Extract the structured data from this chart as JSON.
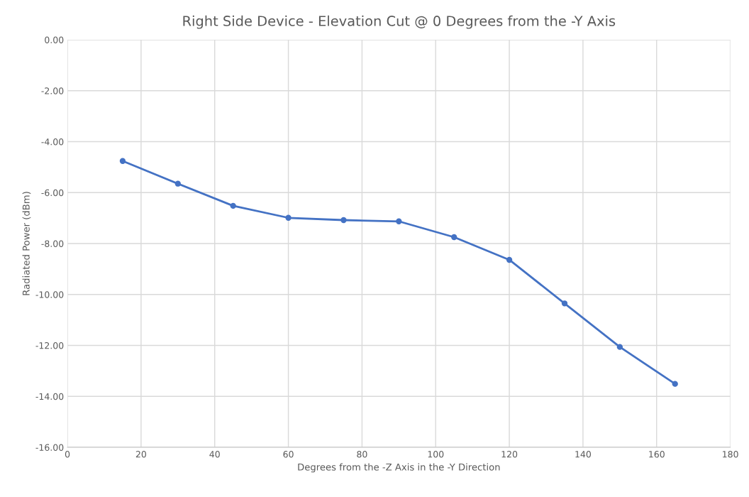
{
  "chart_data": {
    "type": "line",
    "title": "Right Side Device - Elevation Cut @ 0 Degrees from the -Y Axis",
    "xlabel": "Degrees from the -Z Axis in the -Y Direction",
    "ylabel": "Radiated Power (dBm)",
    "x": [
      15,
      30,
      45,
      60,
      75,
      90,
      105,
      120,
      135,
      150,
      165
    ],
    "series": [
      {
        "color": "#4472c4",
        "values": [
          -4.76,
          -5.65,
          -6.52,
          -6.99,
          -7.08,
          -7.13,
          -7.75,
          -8.64,
          -10.35,
          -12.06,
          -13.51
        ]
      }
    ],
    "xlim": [
      0,
      180
    ],
    "xticks": [
      0,
      20,
      40,
      60,
      80,
      100,
      120,
      140,
      160,
      180
    ],
    "ylim": [
      -16,
      0
    ],
    "yticks": [
      {
        "value": -16,
        "label": "-16.00"
      },
      {
        "value": -14,
        "label": "-14.00"
      },
      {
        "value": -12,
        "label": "-12.00"
      },
      {
        "value": -10,
        "label": "-10.00"
      },
      {
        "value": -8,
        "label": "-8.00"
      },
      {
        "value": -6,
        "label": "-6.00"
      },
      {
        "value": -4,
        "label": "-4.00"
      },
      {
        "value": -2,
        "label": "-2.00"
      },
      {
        "value": 0,
        "label": "0.00"
      }
    ],
    "grid": true,
    "marker": "circle",
    "line_style": "solid",
    "legend": false
  }
}
